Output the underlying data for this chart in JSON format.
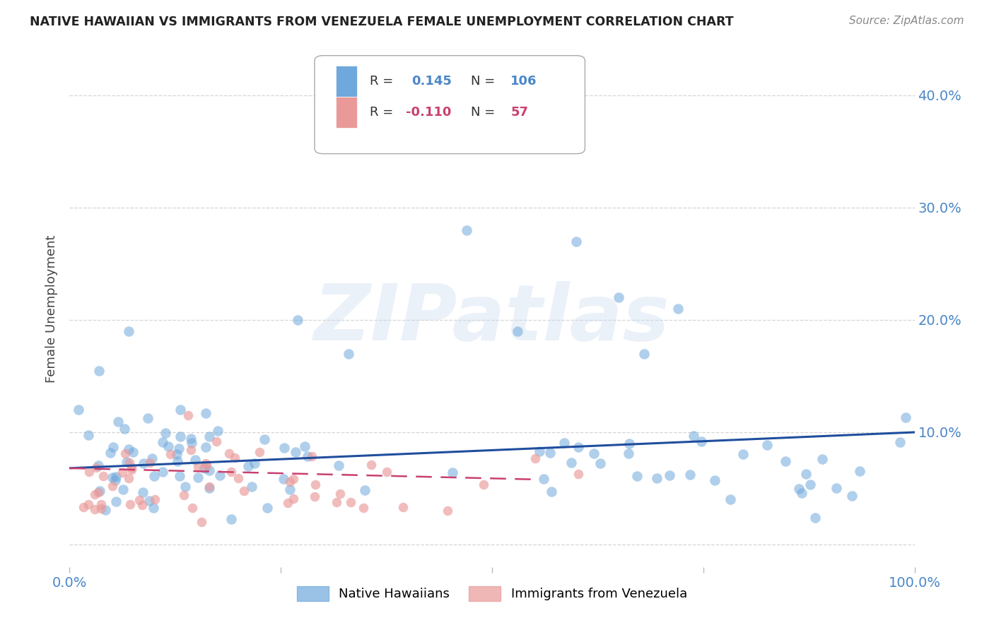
{
  "title": "NATIVE HAWAIIAN VS IMMIGRANTS FROM VENEZUELA FEMALE UNEMPLOYMENT CORRELATION CHART",
  "source": "Source: ZipAtlas.com",
  "ylabel": "Female Unemployment",
  "watermark": "ZIPatlas",
  "xlim": [
    0.0,
    1.0
  ],
  "ylim": [
    -0.02,
    0.44
  ],
  "ytick_vals": [
    0.0,
    0.1,
    0.2,
    0.3,
    0.4
  ],
  "ytick_labels_right": [
    "",
    "10.0%",
    "20.0%",
    "30.0%",
    "40.0%"
  ],
  "xtick_vals": [
    0.0,
    0.25,
    0.5,
    0.75,
    1.0
  ],
  "xtick_labels": [
    "0.0%",
    "",
    "",
    "",
    "100.0%"
  ],
  "blue_R": 0.145,
  "blue_N": 106,
  "pink_R": -0.11,
  "pink_N": 57,
  "blue_color": "#6fa8dc",
  "pink_color": "#ea9999",
  "blue_line_color": "#1f4e9e",
  "pink_line_color": "#c94070",
  "axis_color": "#4a86c8",
  "background_color": "#ffffff",
  "grid_color": "#cccccc",
  "title_color": "#222222"
}
